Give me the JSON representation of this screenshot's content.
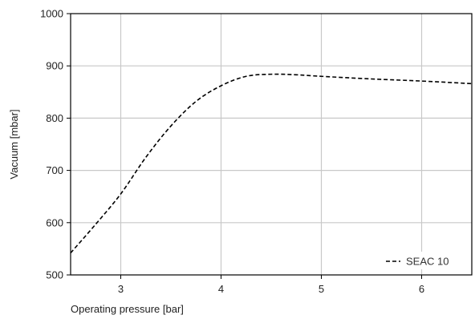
{
  "chart_data": {
    "type": "line",
    "title": "",
    "xlabel": "Operating pressure [bar]",
    "ylabel": "Vacuum [mbar]",
    "xlim": [
      2.5,
      6.5
    ],
    "ylim": [
      500,
      1000
    ],
    "xticks": [
      3,
      4,
      5,
      6
    ],
    "xtick_labels": [
      "3",
      "4",
      "5",
      "6"
    ],
    "yticks": [
      500,
      600,
      700,
      800,
      900,
      1000
    ],
    "ytick_labels": [
      "500",
      "600",
      "700",
      "800",
      "900",
      "1000"
    ],
    "grid": true,
    "legend_position": "bottom-right",
    "series": [
      {
        "name": "SEAC 10",
        "line_style": "dashed",
        "color": "#000000",
        "x": [
          2.5,
          2.75,
          3.0,
          3.25,
          3.5,
          3.75,
          4.0,
          4.25,
          4.5,
          4.75,
          5.0,
          5.5,
          6.0,
          6.5
        ],
        "y": [
          542,
          597,
          655,
          725,
          785,
          832,
          862,
          880,
          884,
          883,
          880,
          875,
          871,
          866
        ]
      }
    ]
  }
}
